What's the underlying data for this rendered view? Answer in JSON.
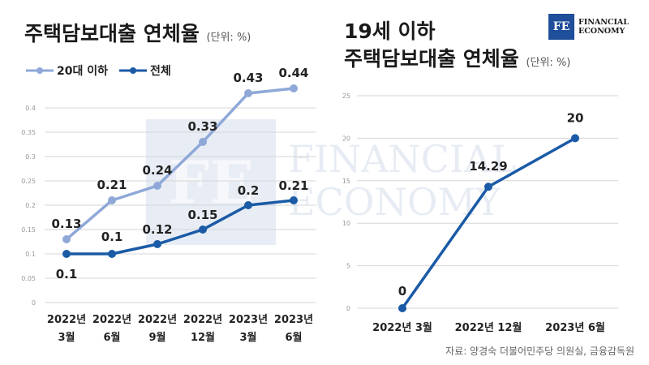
{
  "left_title": "주택담보대출 연체율",
  "left_unit": "(단위: %)",
  "right_title_line1": "19세 이하",
  "right_title_line2": "주택담보대출 연체율",
  "right_unit": "(단위: %)",
  "logo": {
    "mark": "FE",
    "line1": "FINANCIAL",
    "line2": "ECONOMY"
  },
  "watermark": {
    "mark": "FE",
    "line1": "FINANCIAL",
    "line2": "ECONOMY"
  },
  "source": "자료: 양경숙 더불어민주당 의원실, 금융감독원",
  "colors": {
    "series_light": "#8fa8d8",
    "series_dark": "#1a5aa6",
    "grid": "#d5d5d5"
  },
  "chart_data": [
    {
      "type": "line",
      "categories": [
        [
          "2022년",
          "3월"
        ],
        [
          "2022년",
          "6월"
        ],
        [
          "2022년",
          "9월"
        ],
        [
          "2022년",
          "12월"
        ],
        [
          "2023년",
          "3월"
        ],
        [
          "2023년",
          "6월"
        ]
      ],
      "ylim": [
        0,
        0.45
      ],
      "yticks": [
        "0",
        "0.05",
        "0.1",
        "0.15",
        "0.2",
        "0.25",
        "0.3",
        "0.35",
        "0.4"
      ],
      "legend_position": "top-left",
      "series": [
        {
          "name": "20대 이하",
          "values": [
            0.13,
            0.21,
            0.24,
            0.33,
            0.43,
            0.44
          ],
          "labels": [
            "0.13",
            "0.21",
            "0.24",
            "0.33",
            "0.43",
            "0.44"
          ]
        },
        {
          "name": "전체",
          "values": [
            0.1,
            0.1,
            0.12,
            0.15,
            0.2,
            0.21
          ],
          "labels": [
            "0.1",
            "0.1",
            "0.12",
            "0.15",
            "0.2",
            "0.21"
          ]
        }
      ]
    },
    {
      "type": "line",
      "categories": [
        "2022년 3월",
        "2022년 12월",
        "2023년 6월"
      ],
      "ylim": [
        0,
        25
      ],
      "yticks": [
        "0",
        "5",
        "10",
        "15",
        "20",
        "25"
      ],
      "series": [
        {
          "values": [
            0,
            14.29,
            20
          ],
          "labels": [
            "0",
            "14.29",
            "20"
          ]
        }
      ]
    }
  ]
}
